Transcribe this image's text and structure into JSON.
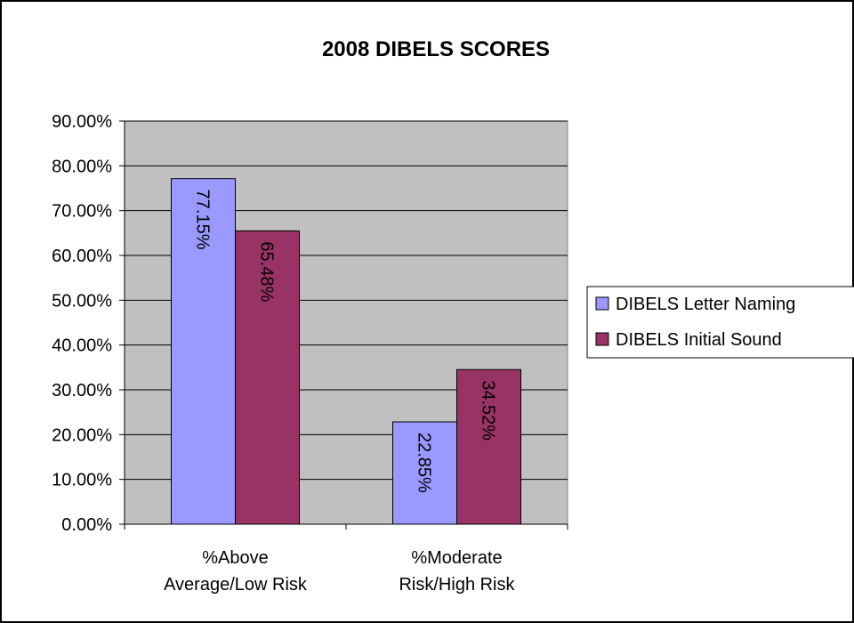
{
  "chart_data": {
    "type": "bar",
    "title": "2008 DIBELS SCORES",
    "categories": [
      [
        "%Above",
        "Average/Low Risk"
      ],
      [
        "%Moderate",
        "Risk/High Risk"
      ]
    ],
    "series": [
      {
        "name": "DIBELS Letter Naming",
        "values": [
          77.15,
          22.85
        ],
        "labels": [
          "77.15%",
          "22.85%"
        ],
        "color": "#9999ff"
      },
      {
        "name": "DIBELS Initial Sound",
        "values": [
          65.48,
          34.52
        ],
        "labels": [
          "65.48%",
          "34.52%"
        ],
        "color": "#993366"
      }
    ],
    "ylim": [
      0,
      90
    ],
    "yticks": [
      "0.00%",
      "10.00%",
      "20.00%",
      "30.00%",
      "40.00%",
      "50.00%",
      "60.00%",
      "70.00%",
      "80.00%",
      "90.00%"
    ],
    "grid": true,
    "legend": "right",
    "plot_background": "#c0c0c0",
    "data_label_orientation": "rotated-90"
  }
}
